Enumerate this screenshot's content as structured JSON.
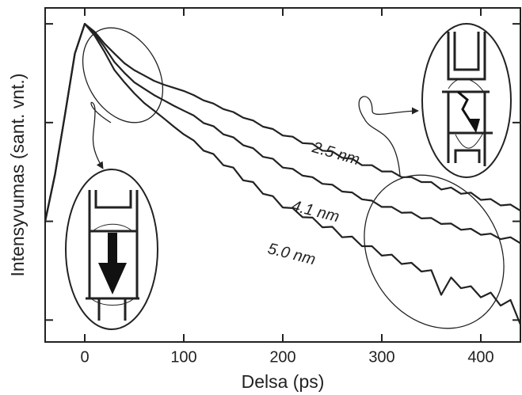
{
  "chart_data": {
    "type": "line",
    "x_label": "Delsa (ps)",
    "y_label": "Intensyvumas (sant. vnt.)",
    "yscale": "log",
    "xlim": [
      -40,
      440
    ],
    "ylim": [
      0.0006,
      1.45
    ],
    "xticks": [
      0,
      100,
      200,
      300,
      400
    ],
    "yticks": [
      0.001,
      0.01,
      0.1,
      1
    ],
    "x": [
      -40,
      -30,
      -20,
      -10,
      0,
      10,
      20,
      30,
      40,
      50,
      60,
      70,
      80,
      90,
      100,
      110,
      120,
      130,
      140,
      150,
      160,
      170,
      180,
      190,
      200,
      210,
      220,
      230,
      240,
      250,
      260,
      270,
      280,
      290,
      300,
      310,
      320,
      330,
      340,
      350,
      360,
      370,
      380,
      390,
      400,
      410,
      420,
      430,
      440
    ],
    "series": [
      {
        "name": "2.5 nm",
        "color": "#222222",
        "values": [
          0.01,
          0.03,
          0.12,
          0.5,
          1.0,
          0.83,
          0.63,
          0.5,
          0.4,
          0.34,
          0.3,
          0.265,
          0.242,
          0.225,
          0.209,
          0.19,
          0.168,
          0.156,
          0.137,
          0.128,
          0.112,
          0.105,
          0.091,
          0.086,
          0.074,
          0.072,
          0.062,
          0.061,
          0.052,
          0.051,
          0.044,
          0.043,
          0.037,
          0.037,
          0.032,
          0.032,
          0.028,
          0.028,
          0.025,
          0.025,
          0.021,
          0.022,
          0.019,
          0.0195,
          0.0165,
          0.0168,
          0.0145,
          0.0148,
          0.0128
        ]
      },
      {
        "name": "4.1 nm",
        "color": "#222222",
        "values": [
          0.01,
          0.03,
          0.12,
          0.5,
          1.0,
          0.8,
          0.58,
          0.41,
          0.32,
          0.256,
          0.22,
          0.19,
          0.168,
          0.148,
          0.132,
          0.118,
          0.099,
          0.092,
          0.076,
          0.071,
          0.059,
          0.055,
          0.045,
          0.043,
          0.035,
          0.034,
          0.029,
          0.028,
          0.024,
          0.0235,
          0.02,
          0.0196,
          0.0167,
          0.0162,
          0.014,
          0.014,
          0.0122,
          0.0123,
          0.0107,
          0.0108,
          0.0094,
          0.0095,
          0.0082,
          0.0084,
          0.0073,
          0.0075,
          0.0066,
          0.0069,
          0.006
        ]
      },
      {
        "name": "5.0 nm",
        "color": "#222222",
        "values": [
          0.01,
          0.03,
          0.12,
          0.5,
          1.0,
          0.76,
          0.52,
          0.34,
          0.256,
          0.198,
          0.158,
          0.132,
          0.11,
          0.091,
          0.076,
          0.066,
          0.052,
          0.048,
          0.037,
          0.035,
          0.026,
          0.025,
          0.019,
          0.018,
          0.0138,
          0.0136,
          0.011,
          0.0109,
          0.0087,
          0.0088,
          0.0069,
          0.007,
          0.0056,
          0.0056,
          0.0045,
          0.0046,
          0.0037,
          0.0038,
          0.0031,
          0.0032,
          0.0018,
          0.0027,
          0.0021,
          0.0022,
          0.0017,
          0.0019,
          0.0014,
          0.0016,
          0.0009
        ]
      }
    ]
  }
}
